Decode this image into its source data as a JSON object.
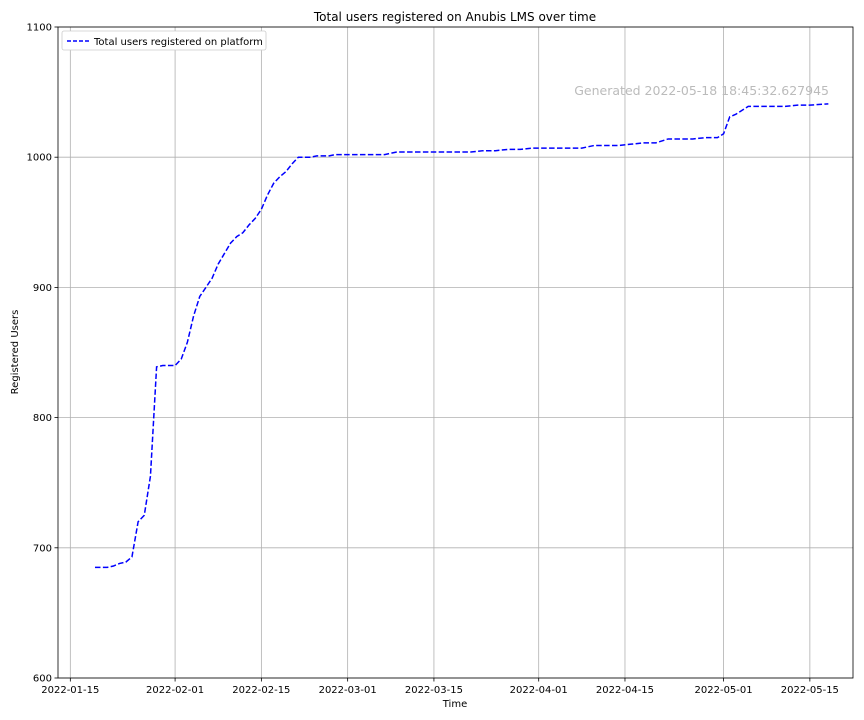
{
  "chart_data": {
    "type": "line",
    "title": "Total users registered on Anubis LMS over time",
    "xlabel": "Time",
    "ylabel": "Registered Users",
    "watermark": "Generated 2022-05-18 18:45:32.627945",
    "xlim": [
      "2022-01-13",
      "2022-05-22"
    ],
    "ylim": [
      600,
      1100
    ],
    "xticks": [
      "2022-01-15",
      "2022-02-01",
      "2022-02-15",
      "2022-03-01",
      "2022-03-15",
      "2022-04-01",
      "2022-04-15",
      "2022-05-01",
      "2022-05-15"
    ],
    "yticks": [
      600,
      700,
      800,
      900,
      1000,
      1100
    ],
    "grid": true,
    "legend_position": "top-left",
    "series": [
      {
        "name": "Total users registered on platform",
        "color": "#0000ff",
        "line_style": "dashed",
        "x": [
          "2022-01-19",
          "2022-01-20",
          "2022-01-21",
          "2022-01-22",
          "2022-01-23",
          "2022-01-24",
          "2022-01-25",
          "2022-01-26",
          "2022-01-27",
          "2022-01-28",
          "2022-01-29",
          "2022-01-30",
          "2022-01-31",
          "2022-02-01",
          "2022-02-02",
          "2022-02-03",
          "2022-02-04",
          "2022-02-05",
          "2022-02-06",
          "2022-02-07",
          "2022-02-08",
          "2022-02-09",
          "2022-02-10",
          "2022-02-11",
          "2022-02-12",
          "2022-02-13",
          "2022-02-14",
          "2022-02-15",
          "2022-02-16",
          "2022-02-17",
          "2022-02-18",
          "2022-02-19",
          "2022-02-20",
          "2022-02-21",
          "2022-02-22",
          "2022-02-23",
          "2022-02-24",
          "2022-02-25",
          "2022-02-26",
          "2022-02-27",
          "2022-02-28",
          "2022-03-01",
          "2022-03-03",
          "2022-03-05",
          "2022-03-07",
          "2022-03-09",
          "2022-03-11",
          "2022-03-13",
          "2022-03-15",
          "2022-03-17",
          "2022-03-19",
          "2022-03-21",
          "2022-03-23",
          "2022-03-25",
          "2022-03-27",
          "2022-03-29",
          "2022-03-31",
          "2022-04-02",
          "2022-04-04",
          "2022-04-06",
          "2022-04-08",
          "2022-04-10",
          "2022-04-12",
          "2022-04-14",
          "2022-04-16",
          "2022-04-18",
          "2022-04-20",
          "2022-04-22",
          "2022-04-24",
          "2022-04-26",
          "2022-04-28",
          "2022-04-30",
          "2022-05-01",
          "2022-05-02",
          "2022-05-03",
          "2022-05-05",
          "2022-05-07",
          "2022-05-09",
          "2022-05-11",
          "2022-05-13",
          "2022-05-15",
          "2022-05-18"
        ],
        "y": [
          685,
          685,
          685,
          686,
          688,
          689,
          693,
          720,
          725,
          755,
          839,
          840,
          840,
          840,
          845,
          858,
          878,
          893,
          900,
          907,
          918,
          926,
          934,
          939,
          942,
          948,
          953,
          960,
          971,
          980,
          985,
          989,
          995,
          1000,
          1000,
          1000,
          1001,
          1001,
          1001,
          1002,
          1002,
          1002,
          1002,
          1002,
          1002,
          1004,
          1004,
          1004,
          1004,
          1004,
          1004,
          1004,
          1005,
          1005,
          1006,
          1006,
          1007,
          1007,
          1007,
          1007,
          1007,
          1009,
          1009,
          1009,
          1010,
          1011,
          1011,
          1014,
          1014,
          1014,
          1015,
          1015,
          1018,
          1031,
          1033,
          1039,
          1039,
          1039,
          1039,
          1040,
          1040,
          1041
        ]
      }
    ]
  }
}
